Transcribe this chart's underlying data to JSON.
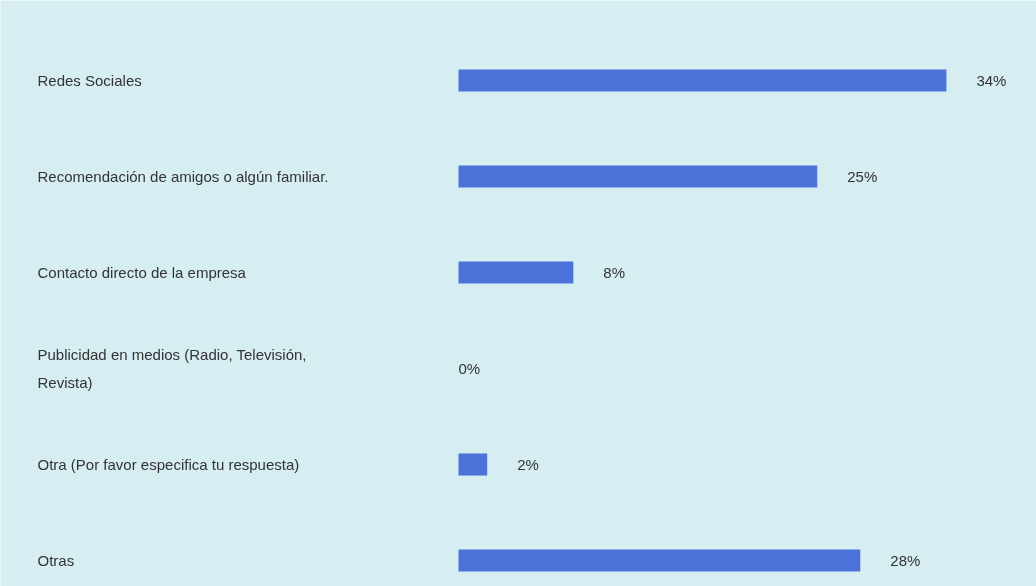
{
  "chart_data": {
    "type": "bar",
    "orientation": "horizontal",
    "categories": [
      "Redes Sociales",
      "Recomendación de amigos o algún familiar.",
      "Contacto directo de la empresa",
      "Publicidad en medios (Radio, Televisión, Revista)",
      "Otra (Por favor especifica tu respuesta)",
      "Otras"
    ],
    "values": [
      34,
      25,
      8,
      0,
      2,
      28
    ],
    "color": "#4a72d8",
    "value_labels": [
      "34%",
      "25%",
      "8%",
      "0%",
      "2%",
      "28%"
    ]
  }
}
